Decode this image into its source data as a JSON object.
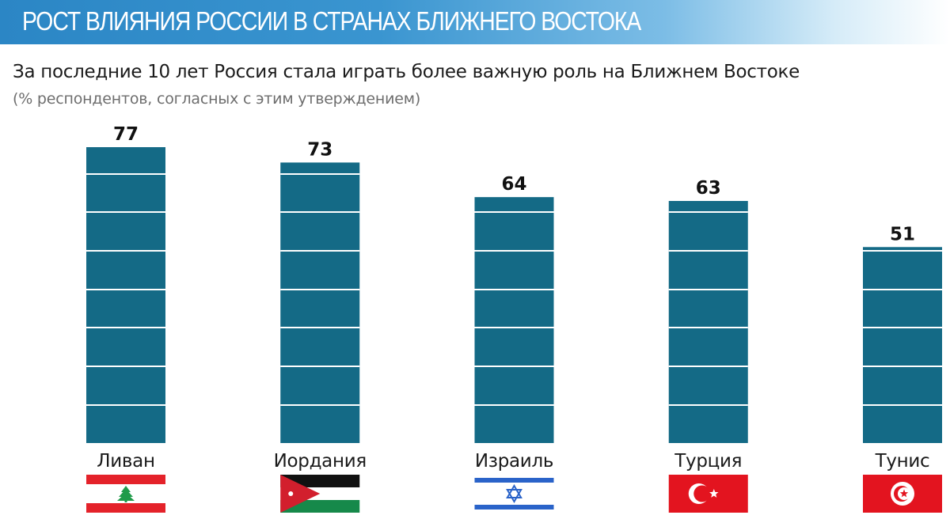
{
  "header": {
    "banner_title": "РОСТ ВЛИЯНИЯ РОССИИ В СТРАНАХ БЛИЖНЕГО ВОСТОКА",
    "subtitle": "За последние 10 лет Россия стала играть более важную роль на Ближнем Востоке",
    "note": "(% респондентов, согласных с этим утверждением)"
  },
  "colors": {
    "banner": "#2b86c5",
    "bar": "#146a86",
    "bar_divider": "#ffffff"
  },
  "chart_data": {
    "type": "bar",
    "categories": [
      "Ливан",
      "Иордания",
      "Израиль",
      "Турция",
      "Тунис"
    ],
    "values": [
      77,
      73,
      64,
      63,
      51
    ],
    "title": "За последние 10 лет Россия стала играть более важную роль на Ближнем Востоке",
    "subtitle": "(% респондентов, согласных с этим утверждением)",
    "xlabel": "",
    "ylabel": "",
    "ylim": [
      0,
      77
    ],
    "grid": false,
    "data_labels": true,
    "flags": [
      "lebanon-flag-icon",
      "jordan-flag-icon",
      "israel-flag-icon",
      "turkey-flag-icon",
      "tunisia-flag-icon"
    ]
  }
}
